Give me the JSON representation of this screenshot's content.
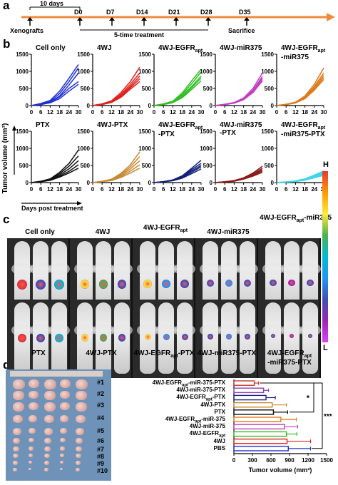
{
  "panel_letters": [
    "a",
    "b",
    "c",
    "d",
    "e"
  ],
  "timeline": {
    "bracket_label": "10 days",
    "days": [
      "D0",
      "D7",
      "D14",
      "D21",
      "D28",
      "D35"
    ],
    "xenografts": "Xenografts",
    "treatment": "5-time treatment",
    "sacrifice": "Sacrifice",
    "arrow_color": "#f08a3c"
  },
  "growth_panels": {
    "y_label": "Tumor volume (mm³)",
    "x_label": "Days post treatment",
    "y_ticks": [
      "0",
      "500",
      "1000",
      "1500"
    ],
    "x_ticks": [
      "0",
      "6",
      "12",
      "18",
      "24",
      "30"
    ],
    "panels": [
      {
        "title": "Cell only",
        "title_sub": "",
        "title_tail": "",
        "color": "#1f2fd6",
        "lines": [
          [
            0,
            60,
            150,
            420,
            800,
            1200
          ],
          [
            0,
            50,
            120,
            350,
            700,
            1100
          ],
          [
            0,
            40,
            100,
            280,
            600,
            950
          ],
          [
            0,
            35,
            90,
            250,
            500,
            700
          ],
          [
            0,
            30,
            80,
            200,
            420,
            620
          ]
        ]
      },
      {
        "title": "4WJ",
        "title_sub": "",
        "title_tail": "",
        "color": "#e0201e",
        "lines": [
          [
            0,
            50,
            140,
            380,
            700,
            1120
          ],
          [
            0,
            45,
            120,
            330,
            620,
            950
          ],
          [
            0,
            40,
            110,
            300,
            560,
            860
          ],
          [
            0,
            35,
            100,
            270,
            520,
            780
          ],
          [
            0,
            30,
            90,
            240,
            480,
            700
          ]
        ]
      },
      {
        "title": "4WJ-EGFR",
        "title_sub": "apt",
        "title_tail": "",
        "color": "#2fbf22",
        "lines": [
          [
            0,
            50,
            130,
            370,
            720,
            1060
          ],
          [
            0,
            45,
            120,
            330,
            640,
            980
          ],
          [
            0,
            40,
            105,
            290,
            560,
            860
          ],
          [
            0,
            35,
            95,
            260,
            520,
            800
          ],
          [
            0,
            30,
            85,
            230,
            470,
            720
          ]
        ]
      },
      {
        "title": "4WJ-miR375",
        "title_sub": "",
        "title_tail": "",
        "color": "#c23fc2",
        "lines": [
          [
            0,
            40,
            90,
            220,
            500,
            950
          ],
          [
            0,
            35,
            85,
            200,
            450,
            850
          ],
          [
            0,
            30,
            80,
            190,
            420,
            800
          ],
          [
            0,
            28,
            75,
            180,
            400,
            760
          ],
          [
            0,
            25,
            70,
            170,
            380,
            720
          ]
        ]
      },
      {
        "title": "4WJ-EGFR",
        "title_sub": "apt",
        "title_tail": "-miR375",
        "color": "#e07a1a",
        "lines": [
          [
            0,
            40,
            100,
            280,
            620,
            1100
          ],
          [
            0,
            35,
            90,
            250,
            560,
            950
          ],
          [
            0,
            32,
            85,
            230,
            520,
            880
          ],
          [
            0,
            30,
            80,
            210,
            480,
            820
          ],
          [
            0,
            28,
            75,
            200,
            450,
            760
          ]
        ]
      },
      {
        "title": "PTX",
        "title_sub": "",
        "title_tail": "",
        "color": "#111111",
        "lines": [
          [
            0,
            40,
            110,
            300,
            560,
            950
          ],
          [
            0,
            35,
            95,
            260,
            480,
            780
          ],
          [
            0,
            30,
            85,
            220,
            400,
            640
          ],
          [
            0,
            28,
            75,
            190,
            330,
            520
          ],
          [
            0,
            25,
            65,
            160,
            280,
            420
          ]
        ]
      },
      {
        "title": "4WJ-PTX",
        "title_sub": "",
        "title_tail": "",
        "color": "#c88a32",
        "lines": [
          [
            0,
            40,
            100,
            270,
            520,
            900
          ],
          [
            0,
            35,
            90,
            240,
            460,
            760
          ],
          [
            0,
            30,
            80,
            210,
            400,
            640
          ],
          [
            0,
            28,
            70,
            180,
            340,
            520
          ],
          [
            0,
            25,
            60,
            150,
            280,
            420
          ]
        ]
      },
      {
        "title": "4WJ-EGFR",
        "title_sub": "apt",
        "title_tail": "-PTX",
        "color": "#13207a",
        "lines": [
          [
            0,
            30,
            80,
            200,
            420,
            650
          ],
          [
            0,
            28,
            75,
            180,
            380,
            560
          ],
          [
            0,
            25,
            70,
            170,
            340,
            500
          ],
          [
            0,
            22,
            60,
            150,
            300,
            460
          ],
          [
            0,
            20,
            55,
            130,
            260,
            400
          ]
        ]
      },
      {
        "title": "4WJ-miR375",
        "title_sub": "",
        "title_tail": "-PTX",
        "color": "#8a1a1a",
        "lines": [
          [
            0,
            25,
            60,
            140,
            280,
            480
          ],
          [
            0,
            22,
            55,
            130,
            250,
            420
          ],
          [
            0,
            20,
            50,
            120,
            230,
            380
          ],
          [
            0,
            18,
            45,
            110,
            210,
            340
          ],
          [
            0,
            15,
            40,
            100,
            190,
            300
          ]
        ]
      },
      {
        "title": "4WJ-EGFR",
        "title_sub": "apt",
        "title_tail": "-miR375-PTX",
        "color": "#3fd6e8",
        "lines": [
          [
            0,
            20,
            50,
            110,
            220,
            340
          ],
          [
            0,
            18,
            45,
            100,
            200,
            300
          ],
          [
            0,
            16,
            40,
            90,
            180,
            270
          ],
          [
            0,
            14,
            35,
            80,
            160,
            240
          ],
          [
            0,
            12,
            30,
            70,
            140,
            210
          ]
        ]
      }
    ]
  },
  "imaging": {
    "top_labels": [
      {
        "text": "Cell only",
        "sub": "",
        "tail": ""
      },
      {
        "text": "4WJ",
        "sub": "",
        "tail": ""
      },
      {
        "text": "4WJ-EGFR",
        "sub": "apt",
        "tail": ""
      },
      {
        "text": "4WJ-miR375",
        "sub": "",
        "tail": ""
      },
      {
        "text": "4WJ-EGFR",
        "sub": "apt",
        "tail": "-miR375"
      }
    ],
    "bottom_labels": [
      {
        "text": "PTX",
        "sub": "",
        "tail": ""
      },
      {
        "text": "4WJ-PTX",
        "sub": "",
        "tail": ""
      },
      {
        "text": "4WJ-EGFR",
        "sub": "apt",
        "tail": "-PTX"
      },
      {
        "text": "4WJ-miR375",
        "sub": "",
        "tail": "-PTX"
      },
      {
        "text": "4WJ-EGFR",
        "sub": "apt",
        "tail": "-miR375-PTX"
      }
    ],
    "colorbar_high": "H",
    "colorbar_low": "L"
  },
  "tumor_photo": {
    "row_labels": [
      "#1",
      "#2",
      "#3",
      "#4",
      "#5",
      "#6",
      "#7",
      "#8",
      "#9",
      "#10"
    ]
  },
  "chart_data": {
    "type": "bar",
    "orientation": "horizontal",
    "xlabel": "Tumor volume (mm³)",
    "xlim": [
      0,
      1500
    ],
    "x_ticks": [
      "0",
      "300",
      "600",
      "900",
      "1200",
      "1500"
    ],
    "categories": [
      {
        "text": "4WJ-EGFR",
        "sub": "apt",
        "tail": "-miR-375-PTX"
      },
      {
        "text": "4WJ-miR-375-PTX",
        "sub": "",
        "tail": ""
      },
      {
        "text": "4WJ-EGFR",
        "sub": "apt",
        "tail": "-PTX"
      },
      {
        "text": "4WJ-PTX",
        "sub": "",
        "tail": ""
      },
      {
        "text": "PTX",
        "sub": "",
        "tail": ""
      },
      {
        "text": "4WJ-EGFR",
        "sub": "apt",
        "tail": "-miR-375"
      },
      {
        "text": "4WJ-miR-375",
        "sub": "",
        "tail": ""
      },
      {
        "text": "4WJ-EGFR",
        "sub": "apt",
        "tail": ""
      },
      {
        "text": "4WJ",
        "sub": "",
        "tail": ""
      },
      {
        "text": "PBS",
        "sub": "",
        "tail": ""
      }
    ],
    "values": [
      330,
      480,
      520,
      620,
      640,
      760,
      820,
      850,
      860,
      880
    ],
    "errors": [
      70,
      80,
      150,
      230,
      230,
      250,
      210,
      170,
      380,
      360
    ],
    "colors": [
      "#c0392b",
      "#8e44ad",
      "#1a237e",
      "#c88a32",
      "#111111",
      "#e07a1a",
      "#c23fc2",
      "#2fbf22",
      "#e0201e",
      "#1f2fd6"
    ],
    "significance": [
      "*",
      "***"
    ]
  }
}
